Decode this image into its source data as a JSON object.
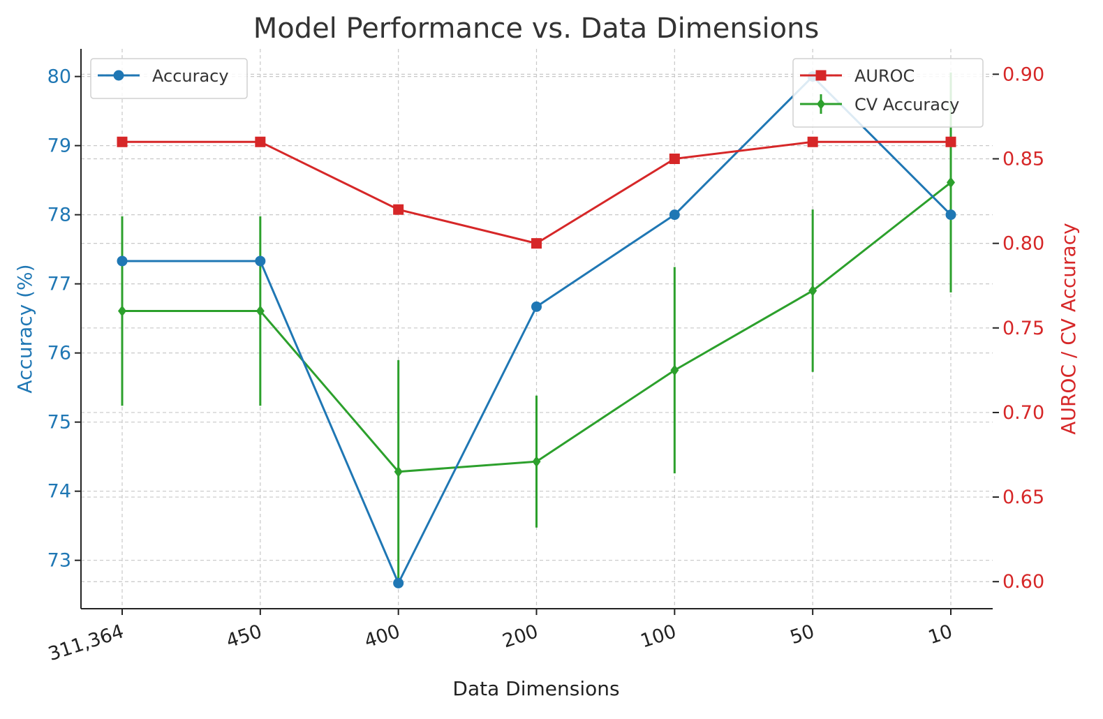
{
  "chart_data": {
    "type": "line",
    "title": "Model Performance vs. Data Dimensions",
    "xlabel": "Data Dimensions",
    "ylabel_left": "Accuracy (%)",
    "ylabel_right": "AUROC / CV Accuracy",
    "categories": [
      "311,364",
      "450",
      "400",
      "200",
      "100",
      "50",
      "10"
    ],
    "y_left": {
      "range": [
        72.3,
        80.4
      ],
      "ticks": [
        "73",
        "74",
        "75",
        "76",
        "77",
        "78",
        "79",
        "80"
      ],
      "tick_values": [
        73,
        74,
        75,
        76,
        77,
        78,
        79,
        80
      ]
    },
    "y_right": {
      "range": [
        0.584,
        0.915
      ],
      "ticks": [
        "0.60",
        "0.65",
        "0.70",
        "0.75",
        "0.80",
        "0.85",
        "0.90"
      ],
      "tick_values": [
        0.6,
        0.65,
        0.7,
        0.75,
        0.8,
        0.85,
        0.9
      ]
    },
    "grid": true,
    "series": [
      {
        "name": "Accuracy",
        "axis": "left",
        "color": "#1f77b4",
        "marker": "circle",
        "values": [
          77.33,
          77.33,
          72.67,
          76.67,
          78.0,
          80.0,
          78.0
        ]
      },
      {
        "name": "AUROC",
        "axis": "right",
        "color": "#d62728",
        "marker": "square",
        "values": [
          0.86,
          0.86,
          0.82,
          0.8,
          0.85,
          0.86,
          0.86
        ]
      },
      {
        "name": "CV Accuracy",
        "axis": "right",
        "color": "#2ca02c",
        "marker": "diamond",
        "values": [
          0.76,
          0.76,
          0.665,
          0.671,
          0.725,
          0.772,
          0.836
        ],
        "error": [
          0.056,
          0.056,
          0.066,
          0.039,
          0.061,
          0.048,
          0.065
        ]
      }
    ],
    "legends": [
      {
        "placement": "top-left",
        "entries": [
          "Accuracy"
        ]
      },
      {
        "placement": "top-right",
        "entries": [
          "AUROC",
          "CV Accuracy"
        ]
      }
    ]
  }
}
